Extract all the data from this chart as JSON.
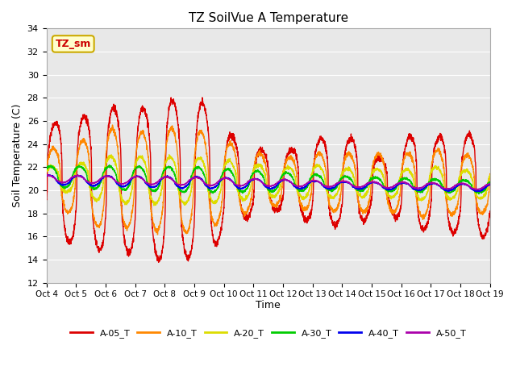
{
  "title": "TZ SoilVue A Temperature",
  "ylabel": "Soil Temperature (C)",
  "xlabel": "Time",
  "ylim": [
    12,
    34
  ],
  "xlim": [
    0,
    15
  ],
  "xtick_labels": [
    "Oct 4",
    "Oct 5",
    "Oct 6",
    "Oct 7",
    "Oct 8",
    "Oct 9",
    "Oct 10",
    "Oct 11",
    "Oct 12",
    "Oct 13",
    "Oct 14",
    "Oct 15",
    "Oct 16",
    "Oct 17",
    "Oct 18",
    "Oct 19"
  ],
  "bg_color": "#e8e8e8",
  "fig_color": "#ffffff",
  "label_box": "TZ_sm",
  "label_box_bg": "#ffffcc",
  "label_box_border": "#ccaa00",
  "series": [
    {
      "name": "A-05_T",
      "color": "#dd0000"
    },
    {
      "name": "A-10_T",
      "color": "#ff8800"
    },
    {
      "name": "A-20_T",
      "color": "#dddd00"
    },
    {
      "name": "A-30_T",
      "color": "#00cc00"
    },
    {
      "name": "A-40_T",
      "color": "#0000ee"
    },
    {
      "name": "A-50_T",
      "color": "#aa00aa"
    }
  ]
}
